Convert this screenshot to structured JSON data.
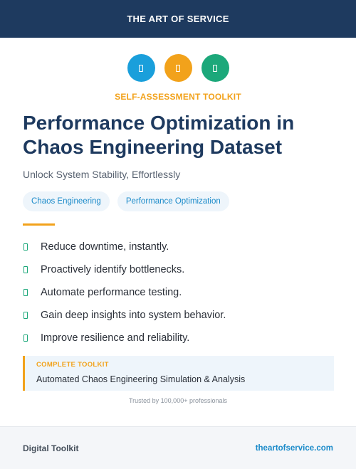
{
  "header": {
    "brand": "THE ART OF SERVICE"
  },
  "icons": [
    {
      "name": "doc-icon",
      "color": "#1a9fdb"
    },
    {
      "name": "doc-icon",
      "color": "#f2a21b"
    },
    {
      "name": "doc-icon",
      "color": "#1ca87a"
    }
  ],
  "kicker": "SELF-ASSESSMENT TOOLKIT",
  "title": "Performance Optimization in Chaos Engineering Dataset",
  "subtitle": "Unlock System Stability, Effortlessly",
  "tags": [
    "Chaos Engineering",
    "Performance Optimization"
  ],
  "features": [
    "Reduce downtime, instantly.",
    "Proactively identify bottlenecks.",
    "Automate performance testing.",
    "Gain deep insights into system behavior.",
    "Improve resilience and reliability."
  ],
  "callout": {
    "label": "COMPLETE TOOLKIT",
    "text": "Automated Chaos Engineering Simulation & Analysis"
  },
  "trusted": "Trusted by 100,000+ professionals",
  "footer": {
    "left": "Digital Toolkit",
    "right": "theartofservice.com"
  }
}
